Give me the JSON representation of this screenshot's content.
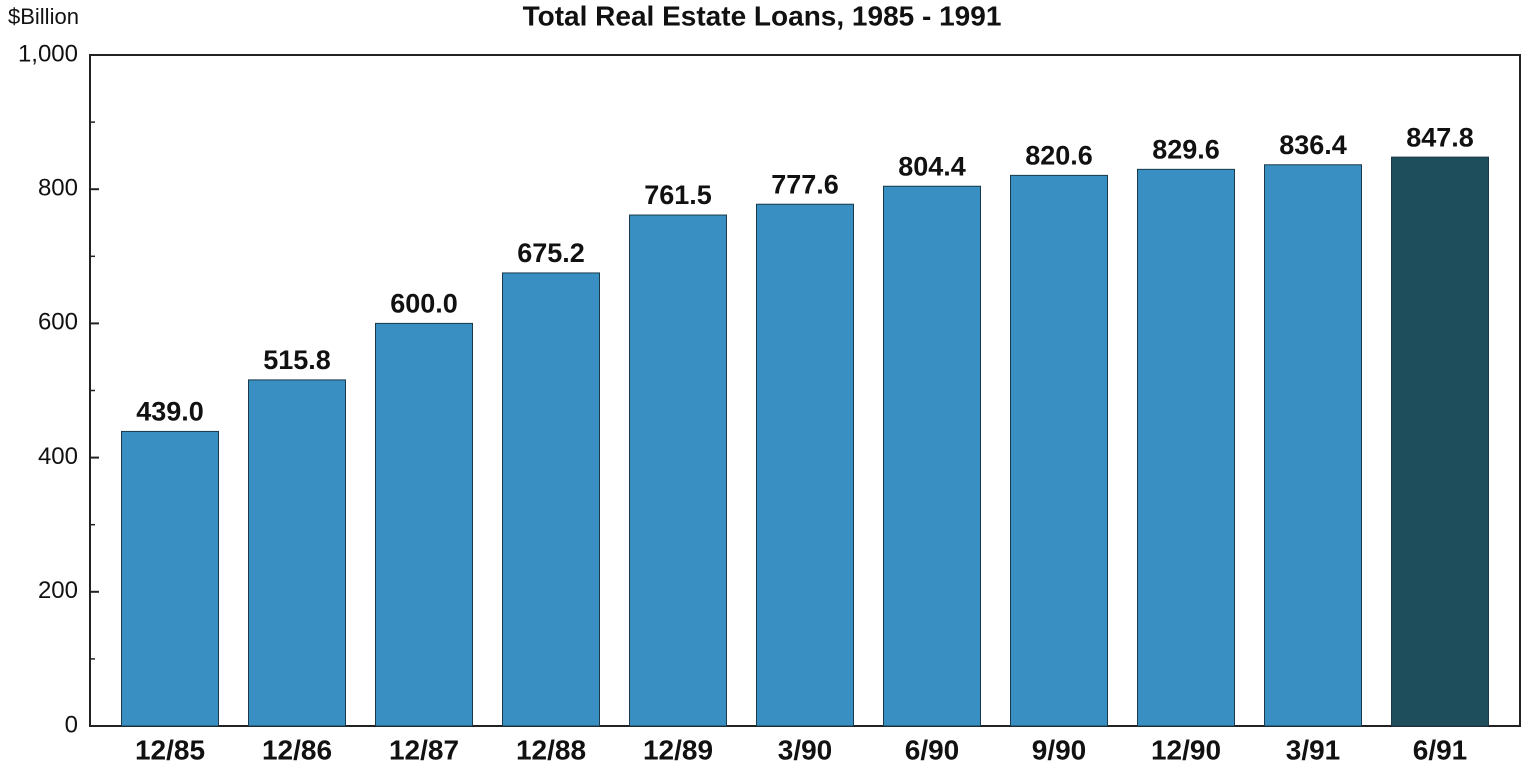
{
  "chart_data": {
    "type": "bar",
    "title": "Total Real Estate Loans, 1985 - 1991",
    "y_axis_label": "$Billion",
    "categories": [
      "12/85",
      "12/86",
      "12/87",
      "12/88",
      "12/89",
      "3/90",
      "6/90",
      "9/90",
      "12/90",
      "3/91",
      "6/91"
    ],
    "values": [
      439.0,
      515.8,
      600.0,
      675.2,
      761.5,
      777.6,
      804.4,
      820.6,
      829.6,
      836.4,
      847.8
    ],
    "value_labels": [
      "439.0",
      "515.8",
      "600.0",
      "675.2",
      "761.5",
      "777.6",
      "804.4",
      "820.6",
      "829.6",
      "836.4",
      "847.8"
    ],
    "colors": [
      "#3a8fc2",
      "#3a8fc2",
      "#3a8fc2",
      "#3a8fc2",
      "#3a8fc2",
      "#3a8fc2",
      "#3a8fc2",
      "#3a8fc2",
      "#3a8fc2",
      "#3a8fc2",
      "#1e4d5c"
    ],
    "ylim": [
      0,
      1000
    ],
    "yticks": [
      0,
      200,
      400,
      600,
      800,
      {
        "value": 1000,
        "label": "1,000"
      }
    ],
    "minor_yticks": [
      100,
      300,
      500,
      700,
      900
    ],
    "grid": false
  }
}
